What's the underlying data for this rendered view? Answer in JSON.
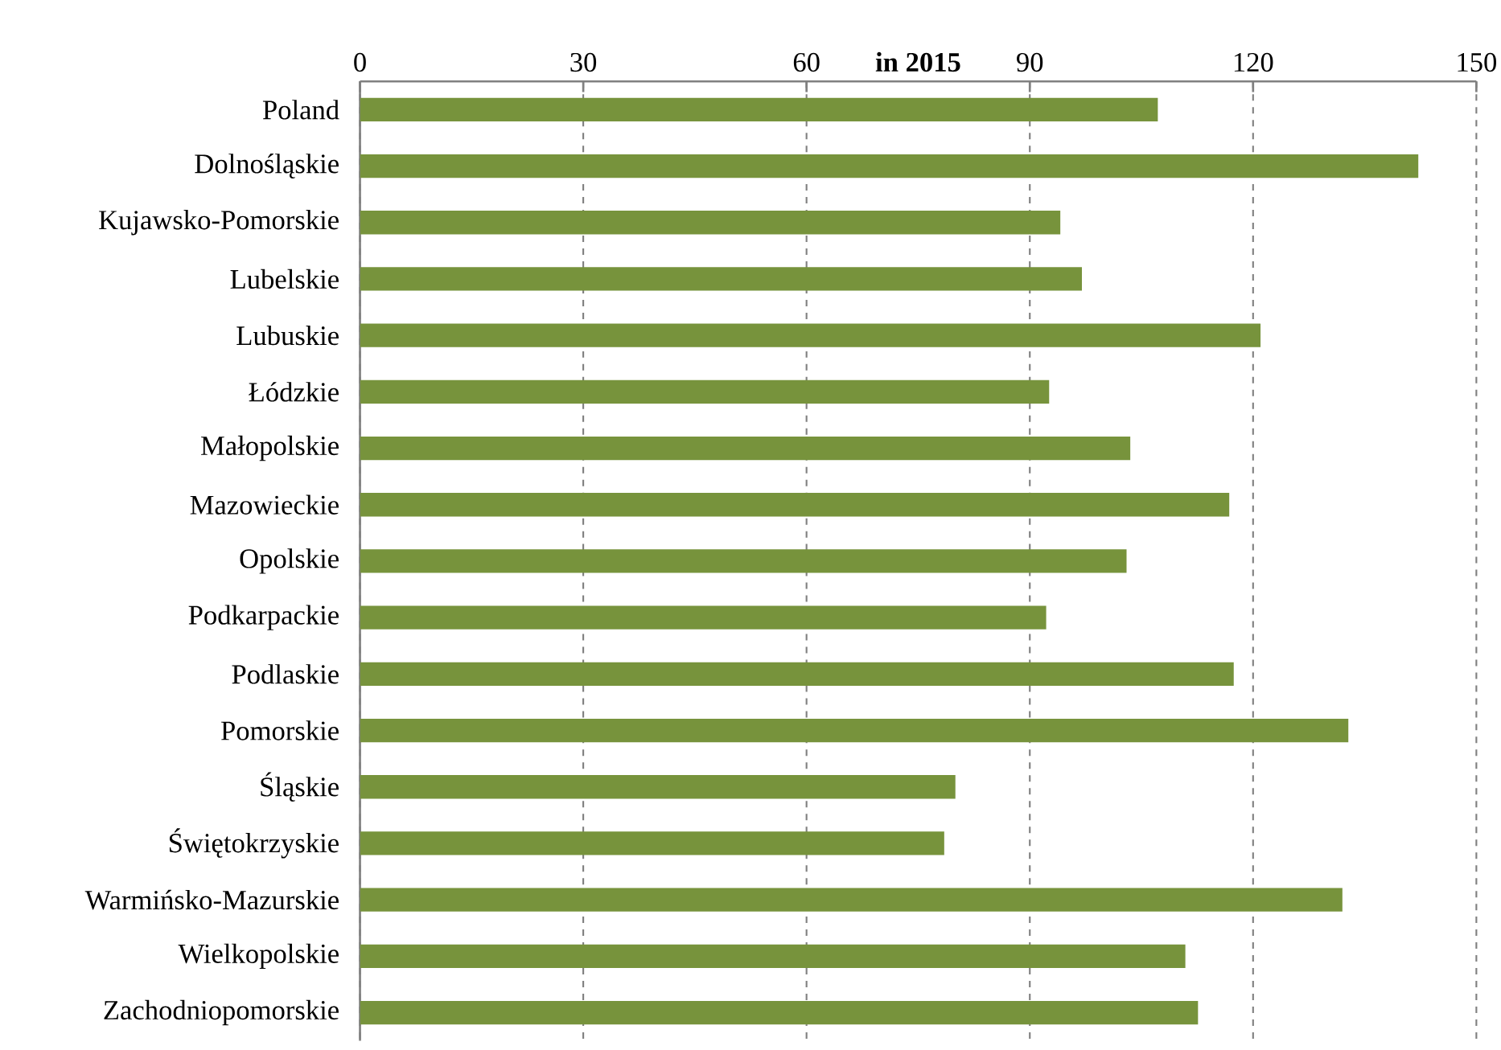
{
  "chart_data": {
    "type": "bar",
    "orientation": "horizontal",
    "title": "in 2015",
    "categories": [
      "Poland",
      "Dolnośląskie",
      "Kujawsko-Pomorskie",
      "Lubelskie",
      "Lubuskie",
      "Łódzkie",
      "Małopolskie",
      "Mazowieckie",
      "Opolskie",
      "Podkarpackie",
      "Podlaskie",
      "Pomorskie",
      "Śląskie",
      "Świętokrzyskie",
      "Warmińsko-Mazurskie",
      "Wielkopolskie",
      "Zachodniopomorskie"
    ],
    "values": [
      107.2,
      142.2,
      94.1,
      97.0,
      121.0,
      92.6,
      103.5,
      116.8,
      103.0,
      92.2,
      117.4,
      132.8,
      80.0,
      78.5,
      132.0,
      110.9,
      112.6
    ],
    "color": "#77933c",
    "xlim": [
      0,
      150
    ],
    "xticks": [
      0,
      30,
      60,
      90,
      120,
      150
    ],
    "grid": "x"
  }
}
